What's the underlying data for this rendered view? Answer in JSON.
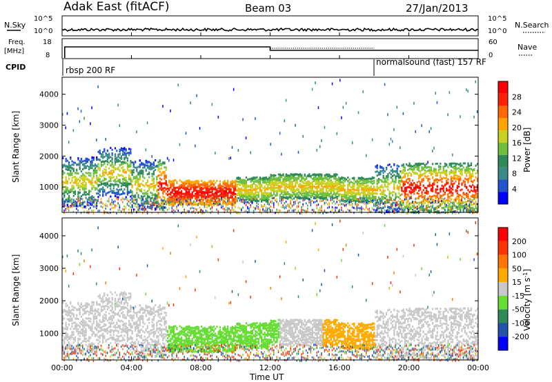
{
  "header": {
    "station": "Adak East (fitACF)",
    "beam": "Beam 03",
    "date": "27/Jan/2013"
  },
  "panel_labels": {
    "nsky": "N.Sky",
    "nsearch": "N.Search",
    "freq": "Freq.",
    "freq_unit": "[MHz]",
    "nave": "Nave",
    "cpid": "CPID",
    "nsky_ticks": [
      "10^5",
      "10^0"
    ],
    "nsearch_ticks": [
      "10^5",
      "10^0"
    ],
    "freq_ticks": [
      "18",
      "8"
    ],
    "nave_ticks": [
      "60",
      "0"
    ]
  },
  "cpid_segments": [
    {
      "label": "rbsp 200 RF",
      "start": 0.0
    },
    {
      "label": "normalsound (fast) 157 RF",
      "start": 18.0
    }
  ],
  "chart_data": [
    {
      "type": "heatmap",
      "name": "power",
      "ylabel": "Slant Range [km]",
      "xlabel": "Time UT",
      "x_ticks": [
        "00:00",
        "04:00",
        "08:00",
        "12:00",
        "16:00",
        "20:00",
        "00:00"
      ],
      "x_range_hours": [
        0,
        24
      ],
      "y_ticks": [
        1000,
        2000,
        3000,
        4000
      ],
      "ylim": [
        180,
        4550
      ],
      "colorbar": {
        "label": "Power [dB]",
        "ticks": [
          4,
          8,
          12,
          16,
          20,
          24,
          28
        ],
        "range": [
          0,
          32
        ],
        "colors": [
          "#0000ff",
          "#2255cc",
          "#3a8a8a",
          "#2e8b57",
          "#6fbf3f",
          "#c8d020",
          "#ffa500",
          "#ff6a00",
          "#ff2200",
          "#ff0000"
        ]
      }
    },
    {
      "type": "heatmap",
      "name": "velocity",
      "ylabel": "Slant Range [km]",
      "xlabel": "Time UT",
      "x_ticks": [
        "00:00",
        "04:00",
        "08:00",
        "12:00",
        "16:00",
        "20:00",
        "00:00"
      ],
      "x_range_hours": [
        0,
        24
      ],
      "y_ticks": [
        1000,
        2000,
        3000,
        4000
      ],
      "ylim": [
        180,
        4550
      ],
      "colorbar": {
        "label": "Velocity [m s",
        "label_sup": "-1",
        "label_end": "]",
        "ticks": [
          200,
          100,
          50,
          15,
          -15,
          -50,
          -100,
          -200
        ],
        "colors": [
          "#0000ff",
          "#2255aa",
          "#2e8b57",
          "#66dd33",
          "#c8c8c8",
          "#ffaa00",
          "#ff7700",
          "#ff3300",
          "#ff0000"
        ]
      }
    }
  ]
}
